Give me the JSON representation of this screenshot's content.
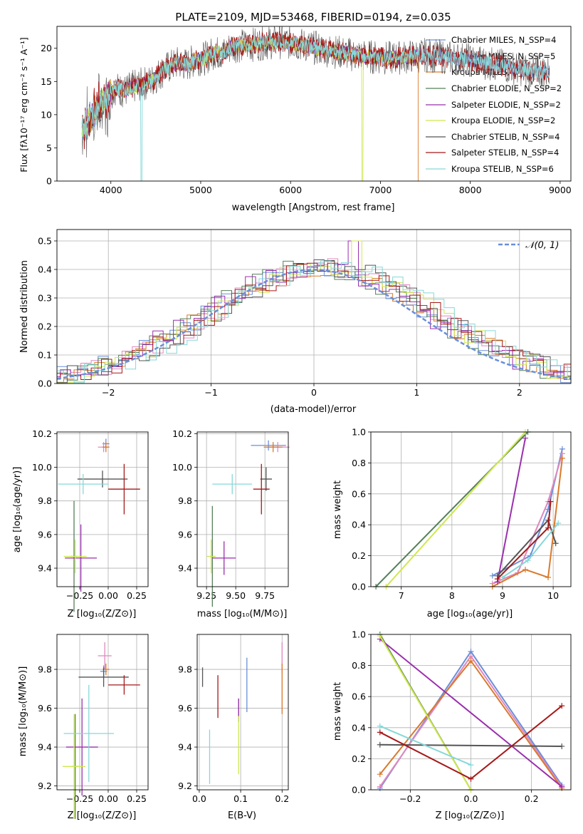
{
  "figure_title": "PLATE=2109, MJD=53468, FIBERID=0194, z=0.035",
  "series_colors": [
    "#6a8fd8",
    "#e088bf",
    "#d97a2b",
    "#55805a",
    "#9b2fae",
    "#cfe84f",
    "#555555",
    "#a61919",
    "#86d8d8"
  ],
  "chart_data": [
    {
      "id": "spectrum",
      "type": "line",
      "title": "PLATE=2109, MJD=53468, FIBERID=0194, z=0.035",
      "xlabel": "wavelength [Angstrom, rest frame]",
      "ylabel": "Flux [fλ10⁻¹⁷ erg cm⁻² s⁻¹ A⁻¹]",
      "xlim": [
        3400,
        9120
      ],
      "ylim": [
        0,
        23.3
      ],
      "xticks": [
        4000,
        5000,
        6000,
        7000,
        8000,
        9000
      ],
      "yticks": [
        0,
        5,
        10,
        15,
        20
      ],
      "legend_position": "top-right",
      "legend": [
        "Chabrier MILES, N_SSP=4",
        "Salpeter MILES, N_SSP=5",
        "Kroupa MILES, N_SSP=5",
        "Chabrier ELODIE, N_SSP=2",
        "Salpeter ELODIE, N_SSP=2",
        "Kroupa ELODIE, N_SSP=2",
        "Chabrier STELIB, N_SSP=4",
        "Salpeter STELIB, N_SSP=4",
        "Kroupa STELIB, N_SSP=6"
      ],
      "continuum_wavelength": [
        3680,
        3750,
        3850,
        3950,
        4050,
        4150,
        4250,
        4350,
        4450,
        4550,
        4650,
        4750,
        4850,
        4950,
        5050,
        5150,
        5250,
        5350,
        5500,
        5700,
        5900,
        6100,
        6300,
        6500,
        6700,
        6900,
        7100,
        7300,
        7500,
        7700,
        7900,
        8100,
        8300,
        8500,
        8700,
        8850
      ],
      "continuum_flux": [
        8.5,
        9.5,
        11.5,
        12.8,
        14.0,
        13.5,
        14.2,
        14.6,
        15.0,
        16.3,
        17.2,
        17.8,
        17.5,
        18.4,
        18.5,
        19.4,
        19.2,
        20.4,
        20.4,
        20.8,
        21.0,
        20.6,
        20.0,
        19.5,
        19.0,
        18.7,
        18.5,
        18.7,
        19.0,
        18.7,
        18.4,
        18.0,
        17.5,
        17.0,
        16.5,
        16.5
      ]
    },
    {
      "id": "residuals",
      "type": "bar",
      "xlabel": "(data-model)/error",
      "ylabel": "Normed distribution",
      "xlim": [
        -2.5,
        2.5
      ],
      "ylim": [
        0,
        0.54
      ],
      "xticks": [
        -2,
        -1,
        0,
        1,
        2
      ],
      "yticks": [
        0.0,
        0.1,
        0.2,
        0.3,
        0.4,
        0.5
      ],
      "grid": true,
      "legend_position": "top-right",
      "reference_curve": "𝒩(0, 1)"
    },
    {
      "id": "age-vs-Z",
      "type": "scatter",
      "xlabel": "Z [log₁₀(Z/Z⊙)]",
      "ylabel": "age  [log₁₀(age/yr)]",
      "xlim": [
        -0.45,
        0.35
      ],
      "ylim": [
        9.29,
        10.21
      ],
      "xticks": [
        -0.25,
        0.0,
        0.25
      ],
      "yticks": [
        9.4,
        9.6,
        9.8,
        10.0,
        10.2
      ],
      "grid": true,
      "points": [
        {
          "x": -0.02,
          "y": 10.14,
          "xerr": 0.03,
          "yerr": 0.03
        },
        {
          "x": -0.04,
          "y": 10.12,
          "xerr": 0.05,
          "yerr": 0.03
        },
        {
          "x": -0.02,
          "y": 10.12,
          "xerr": 0.03,
          "yerr": 0.03
        },
        {
          "x": -0.3,
          "y": 9.47,
          "xerr": 0.03,
          "yerr": 0.33
        },
        {
          "x": -0.24,
          "y": 9.46,
          "xerr": 0.14,
          "yerr": 0.2
        },
        {
          "x": -0.29,
          "y": 9.47,
          "xerr": 0.1,
          "yerr": 0.1
        },
        {
          "x": -0.05,
          "y": 9.93,
          "xerr": 0.22,
          "yerr": 0.05
        },
        {
          "x": 0.14,
          "y": 9.87,
          "xerr": 0.14,
          "yerr": 0.15
        },
        {
          "x": -0.22,
          "y": 9.9,
          "xerr": 0.22,
          "yerr": 0.06
        }
      ]
    },
    {
      "id": "age-vs-mass",
      "type": "scatter",
      "xlabel": "mass [log₁₀(M/M⊙)]",
      "ylabel": "",
      "xlim": [
        9.17,
        9.95
      ],
      "ylim": [
        9.29,
        10.21
      ],
      "xticks": [
        9.25,
        9.5,
        9.75
      ],
      "yticks": [
        9.4,
        9.6,
        9.8,
        10.0,
        10.2
      ],
      "grid": true,
      "points": [
        {
          "x": 9.78,
          "y": 10.13,
          "xerr": 0.15,
          "yerr": 0.03
        },
        {
          "x": 9.86,
          "y": 10.12,
          "xerr": 0.1,
          "yerr": 0.03
        },
        {
          "x": 9.82,
          "y": 10.12,
          "xerr": 0.08,
          "yerr": 0.03
        },
        {
          "x": 9.3,
          "y": 9.47,
          "xerr": 0.02,
          "yerr": 0.3
        },
        {
          "x": 9.4,
          "y": 9.46,
          "xerr": 0.1,
          "yerr": 0.1
        },
        {
          "x": 9.29,
          "y": 9.47,
          "xerr": 0.04,
          "yerr": 0.1
        },
        {
          "x": 9.76,
          "y": 9.93,
          "xerr": 0.05,
          "yerr": 0.07
        },
        {
          "x": 9.72,
          "y": 9.87,
          "xerr": 0.07,
          "yerr": 0.15
        },
        {
          "x": 9.47,
          "y": 9.9,
          "xerr": 0.17,
          "yerr": 0.06
        }
      ]
    },
    {
      "id": "mass-weight-vs-age",
      "type": "line",
      "xlabel": "age  [log₁₀(age/yr)]",
      "ylabel": "mass weight",
      "xlim": [
        6.4,
        10.35
      ],
      "ylim": [
        0,
        1
      ],
      "xticks": [
        7,
        8,
        9,
        10
      ],
      "yticks": [
        0.0,
        0.2,
        0.4,
        0.6,
        0.8,
        1.0
      ],
      "grid": true,
      "series": [
        {
          "x": [
            8.8,
            9.55,
            9.9,
            10.18
          ],
          "y": [
            0.07,
            0.2,
            0.5,
            0.89
          ]
        },
        {
          "x": [
            8.8,
            9.3,
            9.9,
            10.18
          ],
          "y": [
            0.02,
            0.09,
            0.55,
            0.86
          ]
        },
        {
          "x": [
            8.8,
            9.45,
            9.9,
            10.18
          ],
          "y": [
            0.0,
            0.11,
            0.06,
            0.83
          ]
        },
        {
          "x": [
            6.5,
            9.5
          ],
          "y": [
            0.0,
            1.0
          ]
        },
        {
          "x": [
            8.9,
            9.45
          ],
          "y": [
            0.03,
            0.96
          ]
        },
        {
          "x": [
            6.7,
            9.45
          ],
          "y": [
            0.0,
            1.0
          ]
        },
        {
          "x": [
            8.9,
            9.9,
            10.05
          ],
          "y": [
            0.07,
            0.43,
            0.28
          ]
        },
        {
          "x": [
            8.9,
            9.9,
            9.95
          ],
          "y": [
            0.05,
            0.38,
            0.55
          ]
        },
        {
          "x": [
            9.0,
            9.5,
            10.1
          ],
          "y": [
            0.06,
            0.17,
            0.41
          ]
        }
      ]
    },
    {
      "id": "mass-vs-Z",
      "type": "scatter",
      "xlabel": "Z [log₁₀(Z/Z⊙)]",
      "ylabel": "mass [log₁₀(M/M⊙)]",
      "xlim": [
        -0.45,
        0.35
      ],
      "ylim": [
        9.18,
        9.98
      ],
      "xticks": [
        -0.25,
        0.0,
        0.25
      ],
      "yticks": [
        9.2,
        9.4,
        9.6,
        9.8
      ],
      "grid": true,
      "points": [
        {
          "x": -0.04,
          "y": 9.79,
          "xerr": 0.03,
          "yerr": 0.03
        },
        {
          "x": -0.03,
          "y": 9.87,
          "xerr": 0.06,
          "yerr": 0.07
        },
        {
          "x": -0.02,
          "y": 9.8,
          "xerr": 0.03,
          "yerr": 0.03
        },
        {
          "x": -0.29,
          "y": 9.3,
          "xerr": 0.03,
          "yerr": 0.27
        },
        {
          "x": -0.23,
          "y": 9.4,
          "xerr": 0.14,
          "yerr": 0.25
        },
        {
          "x": -0.3,
          "y": 9.3,
          "xerr": 0.1,
          "yerr": 0.27
        },
        {
          "x": -0.04,
          "y": 9.76,
          "xerr": 0.22,
          "yerr": 0.05
        },
        {
          "x": 0.14,
          "y": 9.72,
          "xerr": 0.14,
          "yerr": 0.05
        },
        {
          "x": -0.17,
          "y": 9.47,
          "xerr": 0.22,
          "yerr": 0.25
        }
      ]
    },
    {
      "id": "mass-vs-EBV",
      "type": "scatter",
      "xlabel": "E(B-V)",
      "ylabel": "",
      "xlim": [
        -0.005,
        0.215
      ],
      "ylim": [
        9.18,
        9.98
      ],
      "xticks": [
        0.0,
        0.1,
        0.2
      ],
      "yticks": [
        9.2,
        9.4,
        9.6,
        9.8
      ],
      "grid": true,
      "points": [
        {
          "x": 0.115,
          "y": 9.72,
          "yerr": 0.14
        },
        {
          "x": 0.2,
          "y": 9.86,
          "yerr": 0.08
        },
        {
          "x": 0.2,
          "y": 9.7,
          "yerr": 0.13
        },
        {
          "x": 0.095,
          "y": 9.59,
          "yerr": 0.06
        },
        {
          "x": 0.095,
          "y": 9.59,
          "yerr": 0.06
        },
        {
          "x": 0.095,
          "y": 9.41,
          "yerr": 0.15
        },
        {
          "x": 0.008,
          "y": 9.76,
          "yerr": 0.05
        },
        {
          "x": 0.045,
          "y": 9.66,
          "yerr": 0.11
        },
        {
          "x": 0.025,
          "y": 9.35,
          "yerr": 0.14
        }
      ]
    },
    {
      "id": "mass-weight-vs-Z",
      "type": "line",
      "xlabel": "Z [log₁₀(Z/Z⊙)]",
      "ylabel": "mass weight",
      "xlim": [
        -0.33,
        0.33
      ],
      "ylim": [
        0,
        1
      ],
      "xticks": [
        -0.2,
        0.0,
        0.2
      ],
      "yticks": [
        0.0,
        0.2,
        0.4,
        0.6,
        0.8,
        1.0
      ],
      "grid": true,
      "series": [
        {
          "x": [
            -0.3,
            0.0,
            0.3
          ],
          "y": [
            0.01,
            0.89,
            0.03
          ]
        },
        {
          "x": [
            -0.3,
            0.0,
            0.3
          ],
          "y": [
            0.02,
            0.86,
            0.02
          ]
        },
        {
          "x": [
            -0.3,
            0.0,
            0.3
          ],
          "y": [
            0.1,
            0.83,
            0.01
          ]
        },
        {
          "x": [
            -0.3,
            0.0
          ],
          "y": [
            1.0,
            0.0
          ]
        },
        {
          "x": [
            -0.3,
            0.3
          ],
          "y": [
            0.97,
            0.02
          ]
        },
        {
          "x": [
            -0.3,
            0.0
          ],
          "y": [
            0.99,
            0.0
          ]
        },
        {
          "x": [
            -0.3,
            0.3
          ],
          "y": [
            0.29,
            0.28
          ]
        },
        {
          "x": [
            -0.3,
            0.0,
            0.3
          ],
          "y": [
            0.37,
            0.07,
            0.54
          ]
        },
        {
          "x": [
            -0.3,
            0.0
          ],
          "y": [
            0.41,
            0.16
          ]
        }
      ]
    }
  ]
}
